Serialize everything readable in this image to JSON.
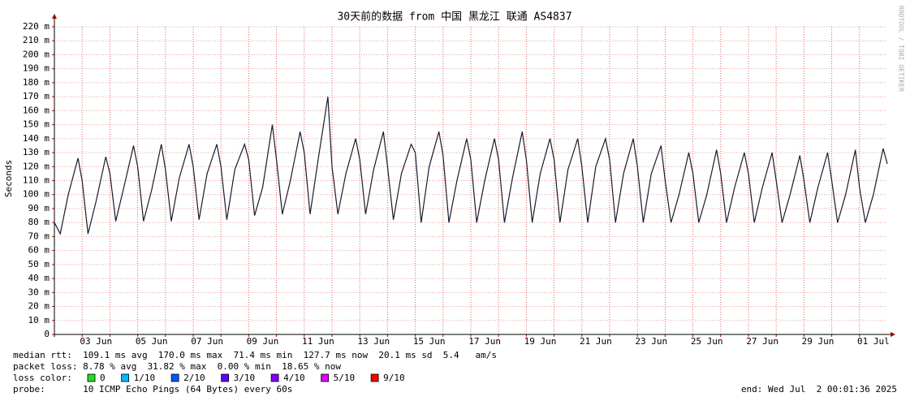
{
  "chart_data": {
    "type": "line",
    "title": "30天前的数据 from 中国 黑龙江 联通 AS4837",
    "y_label": "Seconds",
    "side_text": "RRDTOOL / TOBI OETIKER",
    "ylim": [
      0,
      220
    ],
    "yticks": [
      0,
      {
        "value": 10,
        "label": "10 m"
      },
      {
        "value": 20,
        "label": "20 m"
      },
      {
        "value": 30,
        "label": "30 m"
      },
      {
        "value": 40,
        "label": "40 m"
      },
      {
        "value": 50,
        "label": "50 m"
      },
      {
        "value": 60,
        "label": "60 m"
      },
      {
        "value": 70,
        "label": "70 m"
      },
      {
        "value": 80,
        "label": "80 m"
      },
      {
        "value": 90,
        "label": "90 m"
      },
      {
        "value": 100,
        "label": "100 m"
      },
      {
        "value": 110,
        "label": "110 m"
      },
      {
        "value": 120,
        "label": "120 m"
      },
      {
        "value": 130,
        "label": "130 m"
      },
      {
        "value": 140,
        "label": "140 m"
      },
      {
        "value": 150,
        "label": "150 m"
      },
      {
        "value": 160,
        "label": "160 m"
      },
      {
        "value": 170,
        "label": "170 m"
      },
      {
        "value": 180,
        "label": "180 m"
      },
      {
        "value": 190,
        "label": "190 m"
      },
      {
        "value": 200,
        "label": "200 m"
      },
      {
        "value": 210,
        "label": "210 m"
      },
      {
        "value": 220,
        "label": "220 m"
      }
    ],
    "xlim": [
      2,
      32
    ],
    "xticks": [
      {
        "value": 3.5,
        "label": "03 Jun"
      },
      {
        "value": 5.5,
        "label": "05 Jun"
      },
      {
        "value": 7.5,
        "label": "07 Jun"
      },
      {
        "value": 9.5,
        "label": "09 Jun"
      },
      {
        "value": 11.5,
        "label": "11 Jun"
      },
      {
        "value": 13.5,
        "label": "13 Jun"
      },
      {
        "value": 15.5,
        "label": "15 Jun"
      },
      {
        "value": 17.5,
        "label": "17 Jun"
      },
      {
        "value": 19.5,
        "label": "19 Jun"
      },
      {
        "value": 21.5,
        "label": "21 Jun"
      },
      {
        "value": 23.5,
        "label": "23 Jun"
      },
      {
        "value": 25.5,
        "label": "25 Jun"
      },
      {
        "value": 27.5,
        "label": "27 Jun"
      },
      {
        "value": 29.5,
        "label": "29 Jun"
      },
      {
        "value": 31.5,
        "label": "01 Jul"
      }
    ],
    "grid": true,
    "x": [
      2,
      2.21,
      2.5,
      2.85,
      3,
      3.21,
      3.5,
      3.85,
      4,
      4.21,
      4.5,
      4.85,
      5,
      5.21,
      5.5,
      5.85,
      6,
      6.21,
      6.5,
      6.85,
      7,
      7.21,
      7.5,
      7.85,
      8,
      8.21,
      8.5,
      8.85,
      9,
      9.21,
      9.5,
      9.85,
      10,
      10.21,
      10.5,
      10.85,
      11,
      11.21,
      11.5,
      11.85,
      12,
      12.21,
      12.5,
      12.85,
      13,
      13.21,
      13.5,
      13.85,
      14,
      14.21,
      14.5,
      14.85,
      15,
      15.21,
      15.5,
      15.85,
      16,
      16.21,
      16.5,
      16.85,
      17,
      17.21,
      17.5,
      17.85,
      18,
      18.21,
      18.5,
      18.85,
      19,
      19.21,
      19.5,
      19.85,
      20,
      20.21,
      20.5,
      20.85,
      21,
      21.21,
      21.5,
      21.85,
      22,
      22.21,
      22.5,
      22.85,
      23,
      23.21,
      23.5,
      23.85,
      24,
      24.21,
      24.5,
      24.85,
      25,
      25.21,
      25.5,
      25.85,
      26,
      26.21,
      26.5,
      26.85,
      27,
      27.21,
      27.5,
      27.85,
      28,
      28.21,
      28.5,
      28.85,
      29,
      29.21,
      29.5,
      29.85,
      30,
      30.21,
      30.5,
      30.85,
      31,
      31.21,
      31.5,
      31.85,
      32
    ],
    "series": [
      {
        "color": "#1a1a2e",
        "values": [
          80,
          72,
          100,
          126,
          110,
          72,
          95,
          127,
          115,
          81,
          105,
          135,
          120,
          81,
          103,
          136,
          118,
          81,
          112,
          136,
          120,
          82,
          115,
          136,
          120,
          82,
          118,
          136,
          125,
          85,
          105,
          150,
          125,
          86,
          110,
          145,
          130,
          86,
          125,
          170,
          120,
          86,
          115,
          140,
          125,
          86,
          118,
          145,
          120,
          82,
          115,
          136,
          130,
          80,
          120,
          145,
          128,
          80,
          110,
          140,
          125,
          80,
          110,
          140,
          125,
          80,
          112,
          145,
          125,
          80,
          115,
          140,
          125,
          80,
          118,
          140,
          120,
          80,
          120,
          140,
          125,
          80,
          115,
          140,
          120,
          80,
          115,
          135,
          110,
          80,
          100,
          130,
          115,
          80,
          100,
          132,
          115,
          80,
          105,
          130,
          115,
          80,
          105,
          130,
          110,
          80,
          100,
          128,
          110,
          80,
          105,
          130,
          110,
          80,
          100,
          132,
          105,
          80,
          100,
          133,
          122
        ]
      }
    ],
    "stats": [
      "median rtt:  109.1 ms avg  170.0 ms max  71.4 ms min  127.7 ms now  20.1 ms sd  5.4   am/s",
      "packet loss: 8.78 % avg  31.82 % max  0.00 % min  18.65 % now"
    ],
    "loss_title": "loss color:",
    "loss_colors": [
      {
        "label": "0",
        "color": "#22dd22"
      },
      {
        "label": "1/10",
        "color": "#00b8ff"
      },
      {
        "label": "2/10",
        "color": "#0059ff"
      },
      {
        "label": "3/10",
        "color": "#5e00ff"
      },
      {
        "label": "4/10",
        "color": "#7e00ff"
      },
      {
        "label": "5/10",
        "color": "#dd00ff"
      },
      {
        "label": "9/10",
        "color": "#ff0000"
      }
    ],
    "probe": "probe:       10 ICMP Echo Pings (64 Bytes) every 60s",
    "end": "end: Wed Jul  2 00:01:36 2025"
  }
}
